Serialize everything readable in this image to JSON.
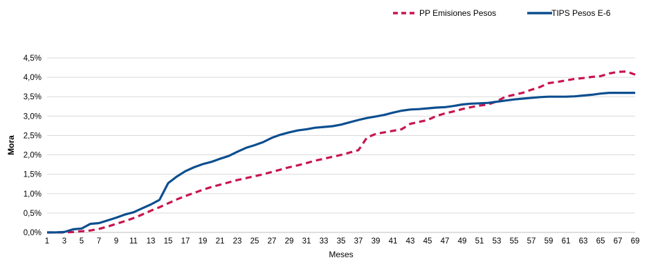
{
  "chart_data": {
    "type": "line",
    "title": "",
    "xlabel": "Meses",
    "ylabel": "Mora",
    "ylim": [
      0,
      4.5
    ],
    "xlim": [
      1,
      69
    ],
    "y_ticks": [
      "0,0%",
      "0,5%",
      "1,0%",
      "1,5%",
      "2,0%",
      "2,5%",
      "3,0%",
      "3,5%",
      "4,0%",
      "4,5%"
    ],
    "x_ticks": [
      "1",
      "3",
      "5",
      "7",
      "9",
      "11",
      "13",
      "15",
      "17",
      "19",
      "21",
      "23",
      "25",
      "27",
      "29",
      "31",
      "33",
      "35",
      "37",
      "39",
      "41",
      "43",
      "45",
      "47",
      "49",
      "51",
      "53",
      "55",
      "57",
      "59",
      "61",
      "63",
      "65",
      "67",
      "69"
    ],
    "grid": true,
    "legend_position": "top-right",
    "x": [
      1,
      2,
      3,
      4,
      5,
      6,
      7,
      8,
      9,
      10,
      11,
      12,
      13,
      14,
      15,
      16,
      17,
      18,
      19,
      20,
      21,
      22,
      23,
      24,
      25,
      26,
      27,
      28,
      29,
      30,
      31,
      32,
      33,
      34,
      35,
      36,
      37,
      38,
      39,
      40,
      41,
      42,
      43,
      44,
      45,
      46,
      47,
      48,
      49,
      50,
      51,
      52,
      53,
      54,
      55,
      56,
      57,
      58,
      59,
      60,
      61,
      62,
      63,
      64,
      65,
      66,
      67,
      68,
      69
    ],
    "series": [
      {
        "name": "PP Emisiones Pesos",
        "color": "#c8144e",
        "style": "dashed",
        "values": [
          0.0,
          0.0,
          0.0,
          0.01,
          0.03,
          0.05,
          0.09,
          0.15,
          0.22,
          0.29,
          0.37,
          0.46,
          0.56,
          0.65,
          0.75,
          0.85,
          0.94,
          1.02,
          1.1,
          1.17,
          1.23,
          1.29,
          1.35,
          1.4,
          1.45,
          1.5,
          1.56,
          1.62,
          1.68,
          1.73,
          1.79,
          1.85,
          1.9,
          1.95,
          2.0,
          2.06,
          2.12,
          2.45,
          2.54,
          2.58,
          2.62,
          2.66,
          2.8,
          2.85,
          2.9,
          3.0,
          3.07,
          3.12,
          3.18,
          3.23,
          3.27,
          3.3,
          3.38,
          3.5,
          3.55,
          3.6,
          3.68,
          3.75,
          3.85,
          3.88,
          3.92,
          3.96,
          3.98,
          4.01,
          4.03,
          4.1,
          4.14,
          4.15,
          4.07
        ]
      },
      {
        "name": "TIPS Pesos E-6",
        "color": "#0b4e8f",
        "style": "solid",
        "values": [
          0.0,
          0.0,
          0.01,
          0.08,
          0.1,
          0.22,
          0.24,
          0.31,
          0.38,
          0.46,
          0.52,
          0.62,
          0.72,
          0.84,
          1.27,
          1.44,
          1.58,
          1.68,
          1.76,
          1.82,
          1.9,
          1.97,
          2.08,
          2.18,
          2.25,
          2.33,
          2.44,
          2.52,
          2.58,
          2.63,
          2.66,
          2.7,
          2.72,
          2.74,
          2.78,
          2.84,
          2.9,
          2.95,
          2.99,
          3.03,
          3.09,
          3.14,
          3.17,
          3.18,
          3.2,
          3.22,
          3.23,
          3.26,
          3.3,
          3.32,
          3.33,
          3.34,
          3.37,
          3.4,
          3.43,
          3.45,
          3.47,
          3.49,
          3.5,
          3.5,
          3.5,
          3.51,
          3.53,
          3.55,
          3.58,
          3.6,
          3.6,
          3.6,
          3.6
        ]
      }
    ]
  }
}
